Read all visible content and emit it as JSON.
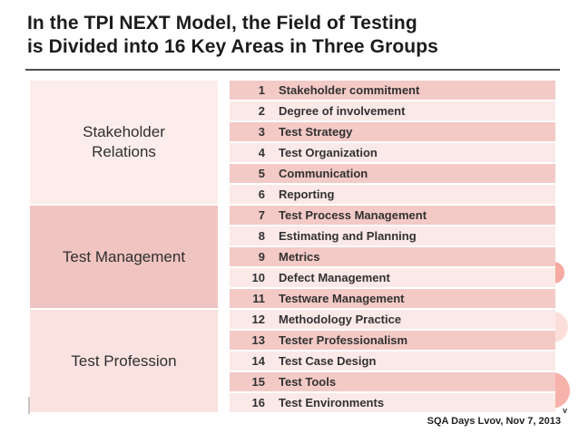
{
  "title": {
    "line1": "In the TPI NEXT Model, the Field of Testing",
    "line2": "is Divided into 16 Key Areas in Three Groups"
  },
  "footer": {
    "credit": "SQA Days Lvov, Nov 7, 2013"
  },
  "decorations": {
    "clipped_letter": "v",
    "circle_colors": [
      "#f5a9a1",
      "#fbdedа",
      "#f6b2ab"
    ]
  },
  "colors": {
    "row_odd": "#f3cac6",
    "row_even": "#fbe9e7",
    "circle_small": "#f5a9a1",
    "circle_light": "#fbdeda",
    "circle_big": "#f6b2ab",
    "title_text": "#1c1c1c",
    "rule": "#4f4f4f"
  },
  "table": {
    "row_colors": {
      "odd": "#f3cac6",
      "even": "#fbe9e7"
    },
    "groups": [
      {
        "id": "stakeholder-relations",
        "label": "Stakeholder Relations",
        "cell_color": "#fcedeb",
        "rows": [
          {
            "num": "1",
            "label": "Stakeholder commitment"
          },
          {
            "num": "2",
            "label": "Degree of involvement"
          },
          {
            "num": "3",
            "label": "Test Strategy"
          },
          {
            "num": "4",
            "label": "Test Organization"
          },
          {
            "num": "5",
            "label": "Communication"
          },
          {
            "num": "6",
            "label": "Reporting"
          }
        ]
      },
      {
        "id": "test-management",
        "label": "Test Management",
        "cell_color": "#f0c4c0",
        "rows": [
          {
            "num": "7",
            "label": "Test Process Management"
          },
          {
            "num": "8",
            "label": "Estimating and Planning"
          },
          {
            "num": "9",
            "label": "Metrics"
          },
          {
            "num": "10",
            "label": "Defect Management"
          },
          {
            "num": "11",
            "label": "Testware Management"
          }
        ]
      },
      {
        "id": "test-profession",
        "label": "Test Profession",
        "cell_color": "#f9e2df",
        "rows": [
          {
            "num": "12",
            "label": "Methodology Practice"
          },
          {
            "num": "13",
            "label": "Tester Professionalism"
          },
          {
            "num": "14",
            "label": "Test Case Design"
          },
          {
            "num": "15",
            "label": "Test Tools"
          },
          {
            "num": "16",
            "label": "Test Environments"
          }
        ]
      }
    ]
  }
}
